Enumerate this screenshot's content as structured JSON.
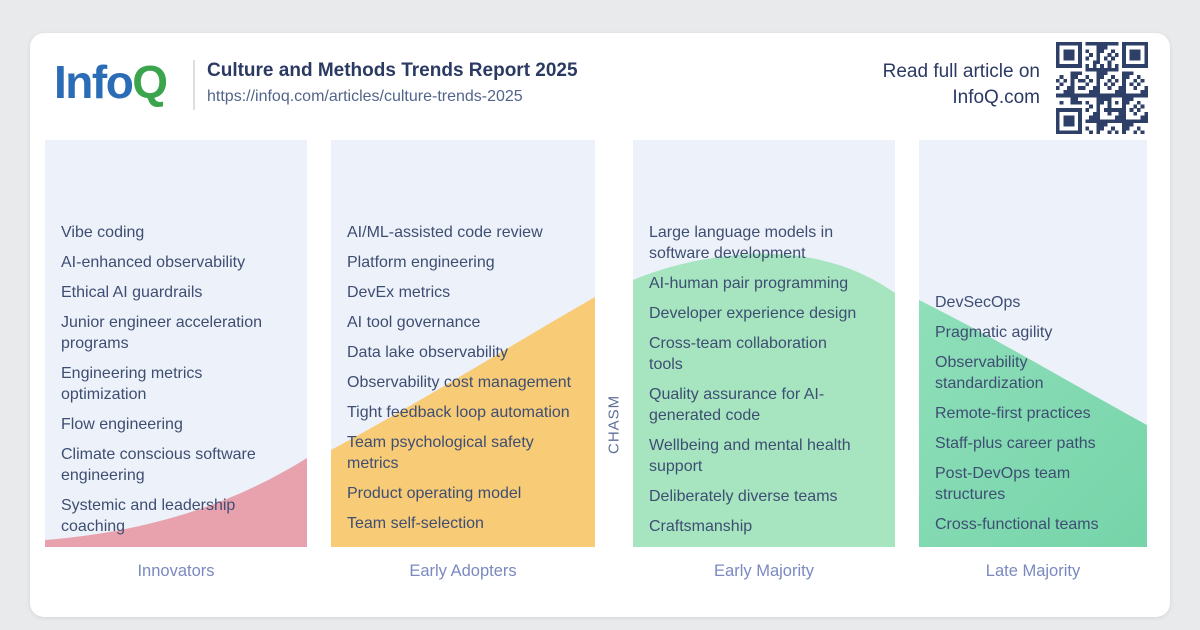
{
  "header": {
    "brand": {
      "part1": "Info",
      "part2": "Q"
    },
    "title": "Culture and Methods Trends Report 2025",
    "url": "https://infoq.com/articles/culture-trends-2025",
    "cta_line1": "Read full article on",
    "cta_line2": "InfoQ.com",
    "qr_icon": "qr-code"
  },
  "chasm_label": "CHASM",
  "colors": {
    "logo_blue": "#2a6cb5",
    "logo_green": "#3aa54c",
    "navy_text": "#2b3a63",
    "qr": "#2e3f68",
    "panel_bg": "#edf1f9",
    "innovators_fill": "#e8a2ae",
    "early_adopters_fill": "#f8cb76",
    "early_majority_fill": "#a6e5c0",
    "late_majority_fill_start": "#8fdfba",
    "late_majority_fill_end": "#76d4a9",
    "column_label_text": "#7a89c0",
    "item_text": "#3e4e72",
    "chasm_text": "#5e6e97"
  },
  "columns": [
    {
      "label": "Innovators",
      "items": [
        "Vibe coding",
        "AI-enhanced observability",
        "Ethical AI guardrails",
        "Junior engineer acceleration programs",
        "Engineering metrics optimization",
        "Flow engineering",
        "Climate conscious software engineering",
        "Systemic and leadership coaching"
      ]
    },
    {
      "label": "Early Adopters",
      "items": [
        "AI/ML-assisted code review",
        "Platform engineering",
        "DevEx metrics",
        "AI tool governance",
        "Data lake observability",
        "Observability cost management",
        "Tight feedback loop automation",
        "Team psychological safety metrics",
        "Product operating model",
        "Team self-selection"
      ]
    },
    {
      "label": "Early Majority",
      "items": [
        "Large language models in software development",
        "AI-human pair programming",
        "Developer experience design",
        "Cross-team collaboration tools",
        "Quality assurance for AI-generated code",
        "Wellbeing and mental health support",
        "Deliberately diverse teams",
        "Craftsmanship"
      ]
    },
    {
      "label": "Late Majority",
      "items": [
        "DevSecOps",
        "Pragmatic agility",
        "Observability standardization",
        "Remote-first practices",
        "Staff-plus career paths",
        "Post-DevOps team structures",
        "Cross-functional teams"
      ]
    }
  ]
}
